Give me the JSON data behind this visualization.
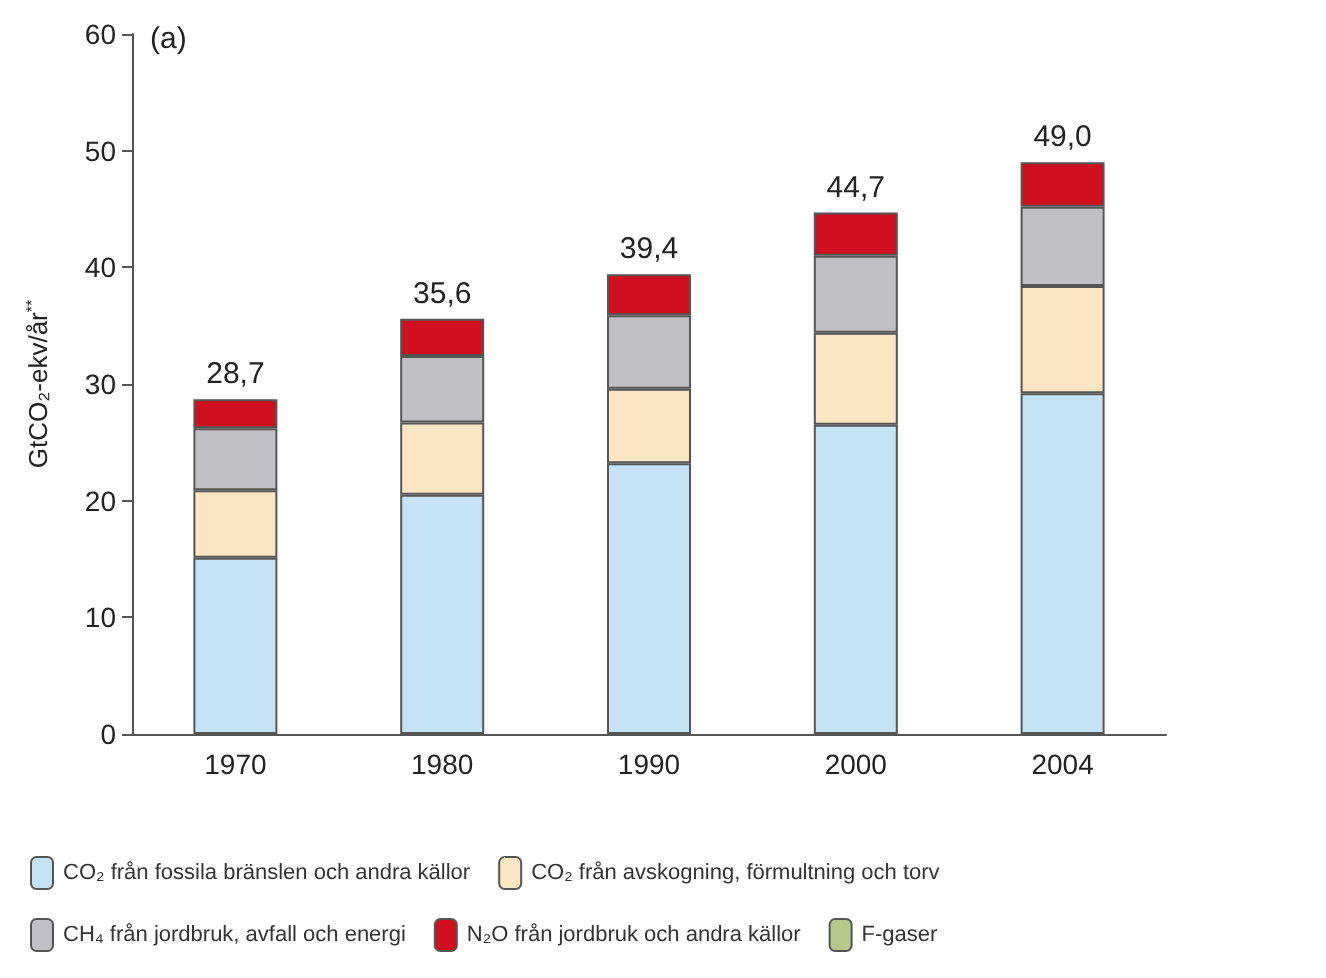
{
  "chart_data": {
    "type": "bar",
    "stacked": true,
    "categories": [
      "1970",
      "1980",
      "1990",
      "2000",
      "2004"
    ],
    "ylabel": "GtCO₂-ekv/år$^{**}$",
    "annotations": [
      "(a)"
    ],
    "ylim": [
      0,
      60
    ],
    "yticks": [
      0,
      10,
      20,
      30,
      40,
      50,
      60
    ],
    "grid": false,
    "legend": "bottom",
    "totals": [
      "28,7",
      "35,6",
      "39,4",
      "44,7",
      "49,0"
    ],
    "series": [
      {
        "name": "CO₂ från fossila bränslen och andra källor",
        "color": "#c6e2f5",
        "values": [
          15.1,
          20.5,
          23.2,
          26.5,
          29.2
        ]
      },
      {
        "name": "CO₂ från avskogning, förmultning och torv",
        "color": "#fbe6c4",
        "values": [
          5.8,
          6.2,
          6.4,
          7.9,
          9.2
        ]
      },
      {
        "name": "CH₄ från jordbruk, avfall och energi",
        "color": "#c0c0c4",
        "values": [
          5.3,
          5.7,
          6.3,
          6.6,
          6.8
        ]
      },
      {
        "name": "N₂O från jordbruk och andra källor",
        "color": "#d0101e",
        "values": [
          2.5,
          3.2,
          3.5,
          3.7,
          3.8
        ]
      },
      {
        "name": "F-gaser",
        "color": "#b6c98a",
        "values": [
          null,
          null,
          null,
          null,
          null
        ]
      }
    ]
  }
}
